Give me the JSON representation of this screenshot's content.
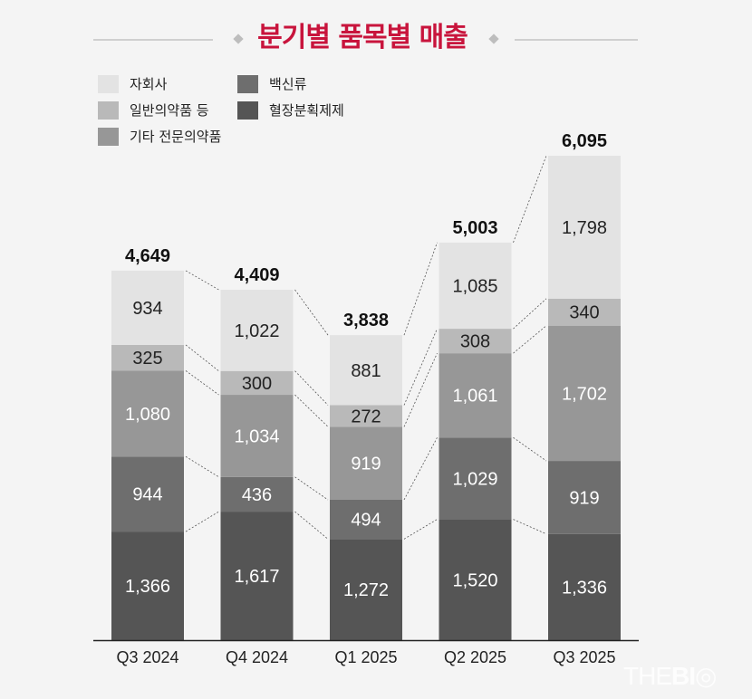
{
  "chart_data": {
    "type": "bar",
    "stacked": true,
    "title": "분기별 품목별 매출",
    "categories": [
      "Q3 2024",
      "Q4 2024",
      "Q1 2025",
      "Q2 2025",
      "Q3 2025"
    ],
    "series": [
      {
        "name": "혈장분획제제",
        "color": "#555555",
        "values": [
          1366,
          1617,
          1272,
          1520,
          1336
        ]
      },
      {
        "name": "백신류",
        "color": "#6e6e6e",
        "values": [
          944,
          436,
          494,
          1029,
          919
        ]
      },
      {
        "name": "기타 전문의약품",
        "color": "#979797",
        "values": [
          1080,
          1034,
          919,
          1061,
          1702
        ]
      },
      {
        "name": "일반의약품 등",
        "color": "#b9b9b9",
        "values": [
          325,
          300,
          272,
          308,
          340
        ]
      },
      {
        "name": "자회사",
        "color": "#e3e3e3",
        "values": [
          934,
          1022,
          881,
          1085,
          1798
        ]
      }
    ],
    "totals": [
      "4,649",
      "4,409",
      "3,838",
      "5,003",
      "6,095"
    ],
    "ylim": [
      0,
      6095
    ],
    "grid": false,
    "legend_position": "top-left"
  },
  "legend_order": [
    "자회사",
    "일반의약품 등",
    "기타 전문의약품",
    "백신류",
    "혈장분획제제"
  ],
  "watermark": "THEBIO",
  "colors": {
    "title": "#c8143c",
    "background": "#f4f4f4"
  }
}
